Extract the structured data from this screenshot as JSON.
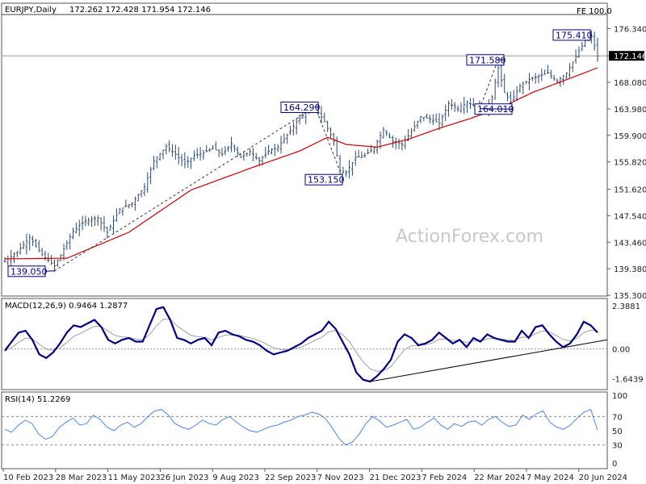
{
  "header": {
    "symbol": "EURJPY,Daily",
    "ohlc": "172.262 172.428 171.954 172.146",
    "fe": "FE 100.0",
    "watermark": "ActionForex.com"
  },
  "colors": {
    "candles": "#2e4a6e",
    "ma": "#cc0000",
    "macd": "#000080",
    "signal": "#a0a0a0",
    "rsi": "#4a86e8",
    "annotation_box": "#000080"
  },
  "chart_data": [
    {
      "type": "candlestick",
      "title": "EURJPY,Daily",
      "ylim": [
        135.3,
        179.0
      ],
      "yticks": [
        "176.340",
        "172.146",
        "168.080",
        "163.980",
        "159.900",
        "155.820",
        "151.620",
        "147.540",
        "143.460",
        "139.380",
        "135.300"
      ],
      "current_price": "172.146",
      "xticks": [
        "10 Feb 2023",
        "28 Mar 2023",
        "11 May 2023",
        "26 Jun 2023",
        "9 Aug 2023",
        "22 Sep 2023",
        "7 Nov 2023",
        "21 Dec 2023",
        "7 Feb 2024",
        "22 Mar 2024",
        "7 May 2024",
        "20 Jun 2024"
      ],
      "price_path": [
        [
          0,
          140.5
        ],
        [
          4,
          142.0
        ],
        [
          8,
          144.2
        ],
        [
          12,
          141.5
        ],
        [
          16,
          139.8
        ],
        [
          18,
          141.5
        ],
        [
          22,
          145.2
        ],
        [
          26,
          146.8
        ],
        [
          30,
          147.2
        ],
        [
          33,
          145.0
        ],
        [
          37,
          148.5
        ],
        [
          41,
          149.5
        ],
        [
          45,
          152.0
        ],
        [
          48,
          156.0
        ],
        [
          52,
          158.2
        ],
        [
          55,
          157.0
        ],
        [
          58,
          155.5
        ],
        [
          61,
          156.8
        ],
        [
          64,
          157.2
        ],
        [
          67,
          158.0
        ],
        [
          70,
          157.0
        ],
        [
          73,
          158.6
        ],
        [
          76,
          156.5
        ],
        [
          79,
          157.4
        ],
        [
          82,
          156.0
        ],
        [
          85,
          157.5
        ],
        [
          88,
          158.1
        ],
        [
          91,
          160.0
        ],
        [
          94,
          162.0
        ],
        [
          97,
          163.5
        ],
        [
          100,
          164.1
        ],
        [
          103,
          162.0
        ],
        [
          106,
          159.0
        ],
        [
          108,
          154.5
        ],
        [
          110,
          154.2
        ],
        [
          113,
          156.5
        ],
        [
          116,
          156.8
        ],
        [
          119,
          158.0
        ],
        [
          122,
          160.8
        ],
        [
          125,
          159.0
        ],
        [
          128,
          158.5
        ],
        [
          131,
          160.5
        ],
        [
          134,
          162.8
        ],
        [
          137,
          162.4
        ],
        [
          140,
          161.8
        ],
        [
          143,
          164.8
        ],
        [
          146,
          164.0
        ],
        [
          149,
          165.0
        ],
        [
          152,
          164.2
        ],
        [
          155,
          163.8
        ],
        [
          157,
          165.8
        ],
        [
          159,
          170.3
        ],
        [
          161,
          166.5
        ],
        [
          163,
          165.0
        ],
        [
          166,
          167.5
        ],
        [
          169,
          168.5
        ],
        [
          172,
          169.0
        ],
        [
          175,
          169.5
        ],
        [
          178,
          168.2
        ],
        [
          181,
          169.5
        ],
        [
          184,
          172.0
        ],
        [
          187,
          174.5
        ],
        [
          189,
          175.2
        ],
        [
          191,
          172.1
        ]
      ],
      "ma_path": [
        [
          0,
          140.9
        ],
        [
          20,
          141.0
        ],
        [
          40,
          145.0
        ],
        [
          60,
          151.5
        ],
        [
          80,
          155.0
        ],
        [
          95,
          157.5
        ],
        [
          104,
          159.6
        ],
        [
          110,
          158.5
        ],
        [
          120,
          158.1
        ],
        [
          130,
          159.3
        ],
        [
          140,
          161.0
        ],
        [
          150,
          162.5
        ],
        [
          160,
          164.2
        ],
        [
          170,
          166.5
        ],
        [
          180,
          168.3
        ],
        [
          191,
          170.3
        ]
      ],
      "annotations": [
        {
          "label": "139.050",
          "price": 139.05,
          "i": 16
        },
        {
          "label": "164.290",
          "price": 164.29,
          "i": 100
        },
        {
          "label": "153.150",
          "price": 153.15,
          "i": 109
        },
        {
          "label": "171.580",
          "price": 171.58,
          "i": 159
        },
        {
          "label": "164.010",
          "price": 164.01,
          "i": 153
        },
        {
          "label": "175.410",
          "price": 175.41,
          "i": 189
        }
      ]
    },
    {
      "type": "line",
      "title": "MACD(12,26,9) 0.9464 1.2877",
      "ylim": [
        -2.2,
        2.6
      ],
      "yticks": [
        "2.3881",
        "0.00",
        "-1.6439"
      ],
      "series": [
        {
          "name": "MACD",
          "values": [
            -0.1,
            0.4,
            0.9,
            1.0,
            0.5,
            -0.3,
            -0.5,
            -0.2,
            0.3,
            0.9,
            1.3,
            1.2,
            1.4,
            1.6,
            1.2,
            0.5,
            0.3,
            0.5,
            0.6,
            0.4,
            0.4,
            1.3,
            2.2,
            2.3,
            1.6,
            0.6,
            0.5,
            0.3,
            0.5,
            0.6,
            0.2,
            0.9,
            1.0,
            0.8,
            0.7,
            0.5,
            0.4,
            0.2,
            -0.1,
            -0.3,
            -0.2,
            -0.1,
            0.1,
            0.3,
            0.6,
            0.8,
            1.0,
            1.5,
            1.1,
            0.4,
            -0.3,
            -1.3,
            -1.7,
            -1.8,
            -1.5,
            -1.1,
            -0.6,
            0.4,
            0.8,
            0.6,
            0.2,
            0.3,
            0.5,
            0.9,
            0.6,
            0.3,
            0.5,
            0.1,
            0.6,
            0.4,
            0.8,
            0.6,
            0.5,
            0.4,
            0.4,
            1.0,
            0.6,
            1.2,
            1.3,
            0.8,
            0.4,
            0.1,
            0.3,
            0.8,
            1.5,
            1.3,
            0.9
          ]
        }
      ]
    },
    {
      "type": "line",
      "title": "RSI(14) 51.2269",
      "ylim": [
        0,
        100
      ],
      "yticks": [
        "100",
        "70",
        "50",
        "30",
        "0"
      ],
      "series": [
        {
          "name": "RSI",
          "values": [
            52,
            48,
            58,
            65,
            60,
            45,
            38,
            42,
            55,
            62,
            68,
            58,
            60,
            72,
            66,
            55,
            50,
            58,
            62,
            55,
            60,
            70,
            78,
            80,
            72,
            60,
            55,
            52,
            58,
            65,
            60,
            58,
            66,
            70,
            62,
            55,
            50,
            48,
            52,
            56,
            58,
            62,
            65,
            70,
            72,
            76,
            74,
            68,
            55,
            40,
            30,
            34,
            45,
            60,
            70,
            64,
            55,
            58,
            62,
            66,
            52,
            55,
            62,
            68,
            58,
            52,
            60,
            56,
            62,
            64,
            58,
            66,
            70,
            62,
            56,
            58,
            72,
            66,
            74,
            78,
            62,
            55,
            52,
            58,
            68,
            76,
            80,
            51
          ]
        }
      ]
    }
  ]
}
